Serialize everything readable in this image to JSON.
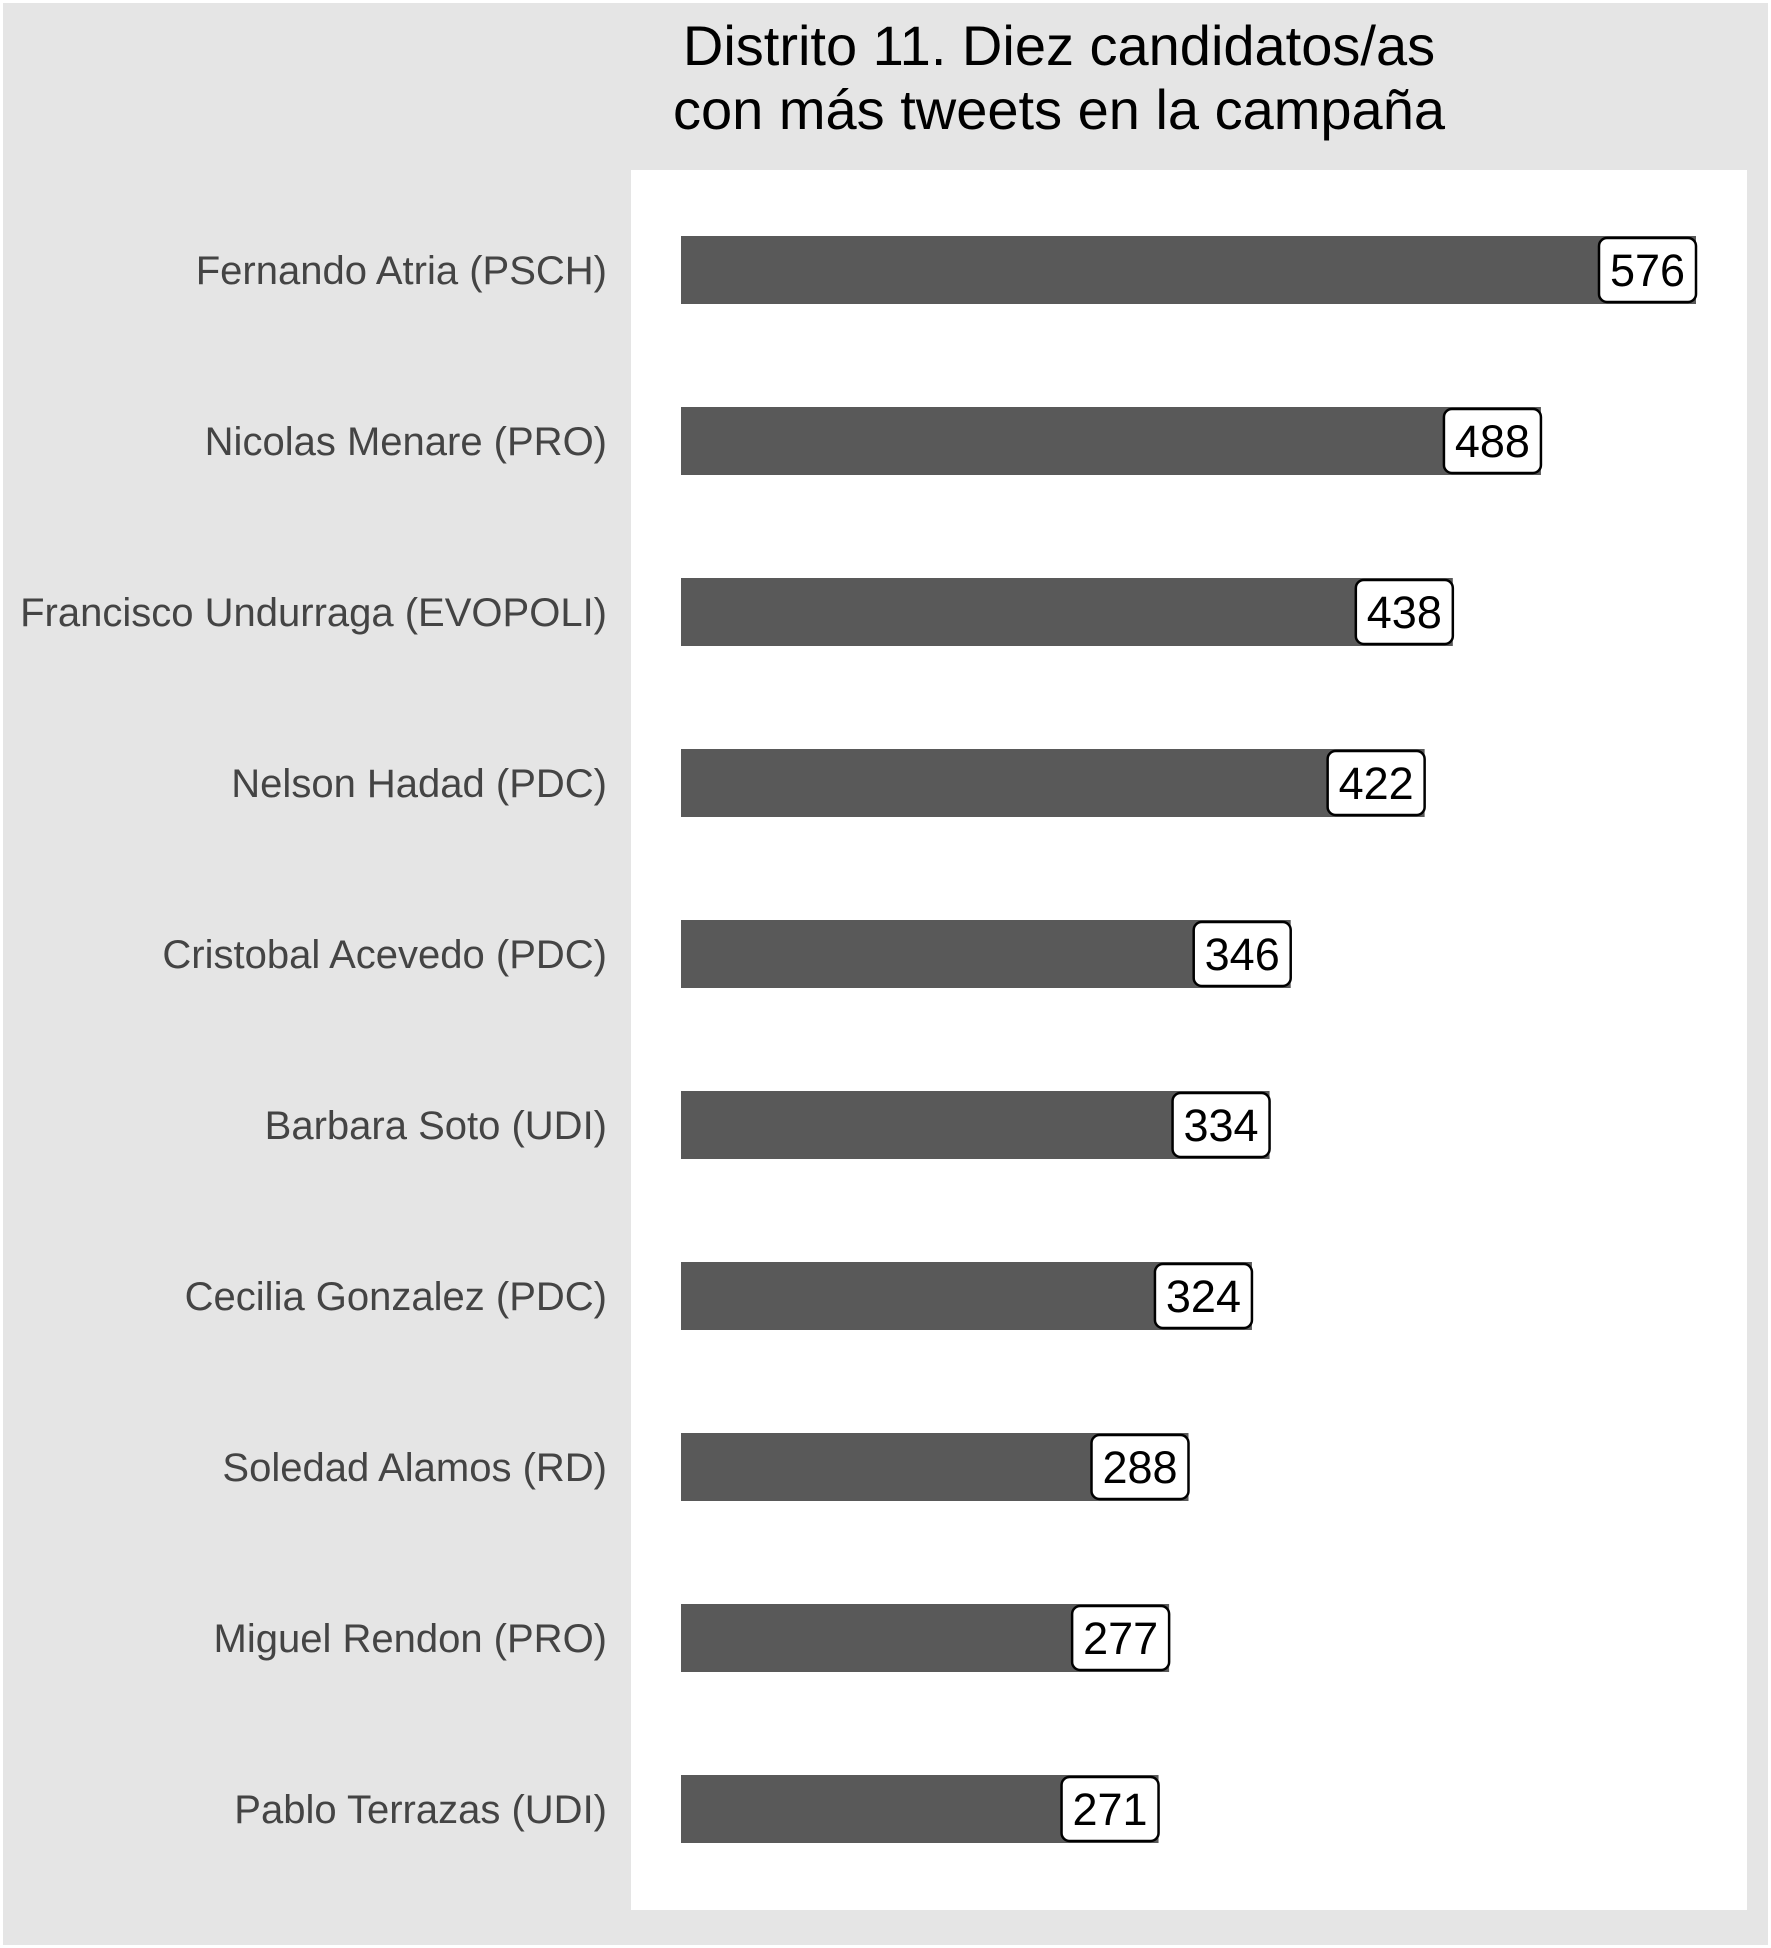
{
  "chart_data": {
    "type": "bar",
    "orientation": "horizontal",
    "title": "Distrito 11. Diez candidatos/as\ncon más tweets en la campaña",
    "xlabel": "",
    "ylabel": "",
    "grid": false,
    "legend": "none",
    "xlim": [
      0,
      576
    ],
    "categories": [
      "Fernando Atria (PSCH)",
      "Nicolas Menare (PRO)",
      "Francisco Undurraga (EVOPOLI)",
      "Nelson Hadad (PDC)",
      "Cristobal Acevedo (PDC)",
      "Barbara Soto (UDI)",
      "Cecilia Gonzalez (PDC)",
      "Soledad Alamos (RD)",
      "Miguel Rendon (PRO)",
      "Pablo Terrazas (UDI)"
    ],
    "values": [
      576,
      488,
      438,
      422,
      346,
      334,
      324,
      288,
      277,
      271
    ],
    "data_labels": [
      "576",
      "488",
      "438",
      "422",
      "346",
      "334",
      "324",
      "288",
      "277",
      "271"
    ],
    "colors": {
      "bar": "#595959",
      "panel": "#ffffff",
      "background": "#e5e5e5",
      "label_box": "#ffffff",
      "category_text": "#444444"
    }
  }
}
